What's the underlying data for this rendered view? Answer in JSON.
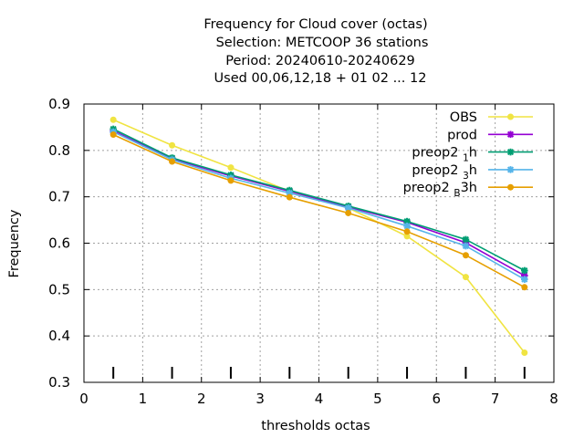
{
  "chart_data": {
    "type": "line",
    "title_lines": [
      "Frequency  for Cloud cover (octas)",
      "Selection: METCOOP      36 stations",
      "Period: 20240610-20240629",
      "Used  00,06,12,18  + 01 02 ... 12"
    ],
    "xlabel": "thresholds octas",
    "ylabel": "Frequency",
    "xlim": [
      0,
      8
    ],
    "ylim": [
      0.3,
      0.9
    ],
    "xticks": [
      0,
      1,
      2,
      3,
      4,
      5,
      6,
      7,
      8
    ],
    "yticks": [
      0.3,
      0.4,
      0.5,
      0.6,
      0.7,
      0.8,
      0.9
    ],
    "xtick_labels": [
      "0",
      "1",
      "2",
      "3",
      "4",
      "5",
      "6",
      "7",
      "8"
    ],
    "ytick_labels": [
      "0.3",
      "0.4",
      "0.5",
      "0.6",
      "0.7",
      "0.8",
      "0.9"
    ],
    "grid": true,
    "legend_position": "top-right",
    "x": [
      0.5,
      1.5,
      2.5,
      3.5,
      4.5,
      5.5,
      6.5,
      7.5
    ],
    "series": [
      {
        "name": "OBS",
        "legend_main": "OBS",
        "legend_sub": "",
        "legend_tail": "",
        "color": "#f0e442",
        "marker": "circle",
        "values": [
          0.866,
          0.811,
          0.763,
          0.712,
          0.676,
          0.615,
          0.527,
          0.364
        ]
      },
      {
        "name": "prod",
        "legend_main": "prod",
        "legend_sub": "",
        "legend_tail": "",
        "color": "#9400d3",
        "marker": "star",
        "values": [
          0.842,
          0.782,
          0.745,
          0.712,
          0.678,
          0.645,
          0.601,
          0.53
        ]
      },
      {
        "name": "preop2 1 h",
        "legend_main": "preop2 ",
        "legend_sub": "1",
        "legend_tail": "h",
        "color": "#009e73",
        "marker": "star",
        "values": [
          0.846,
          0.784,
          0.747,
          0.714,
          0.68,
          0.647,
          0.608,
          0.541
        ]
      },
      {
        "name": "preop2 3 h",
        "legend_main": "preop2 ",
        "legend_sub": "3",
        "legend_tail": "h",
        "color": "#56b4e9",
        "marker": "star",
        "values": [
          0.84,
          0.78,
          0.74,
          0.708,
          0.676,
          0.637,
          0.594,
          0.522
        ]
      },
      {
        "name": "preop2 B 3h",
        "legend_main": "preop2 ",
        "legend_sub": "B",
        "legend_tail": "3h",
        "color": "#e69f00",
        "marker": "circle",
        "values": [
          0.834,
          0.776,
          0.735,
          0.699,
          0.665,
          0.625,
          0.574,
          0.505
        ]
      }
    ]
  }
}
